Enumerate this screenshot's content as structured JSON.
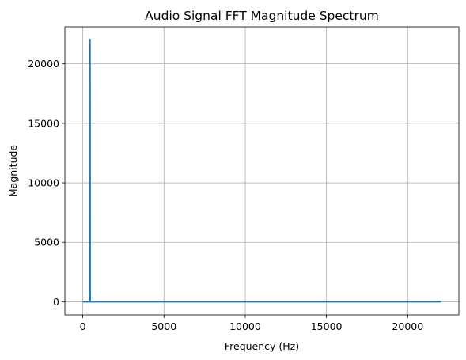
{
  "chart_data": {
    "type": "line",
    "title": "Audio Signal FFT Magnitude Spectrum",
    "xlabel": "Frequency (Hz)",
    "ylabel": "Magnitude",
    "xlim": [
      -1100,
      23150
    ],
    "ylim": [
      -1100,
      23100
    ],
    "xticks": [
      0,
      5000,
      10000,
      15000,
      20000
    ],
    "yticks": [
      0,
      5000,
      10000,
      15000,
      20000
    ],
    "grid": true,
    "series": [
      {
        "color": "#1f77b4",
        "x": [
          0,
          420,
          430,
          440,
          450,
          460,
          470,
          22050
        ],
        "y": [
          0,
          0,
          0,
          22050,
          22050,
          0,
          0,
          0
        ]
      }
    ]
  }
}
